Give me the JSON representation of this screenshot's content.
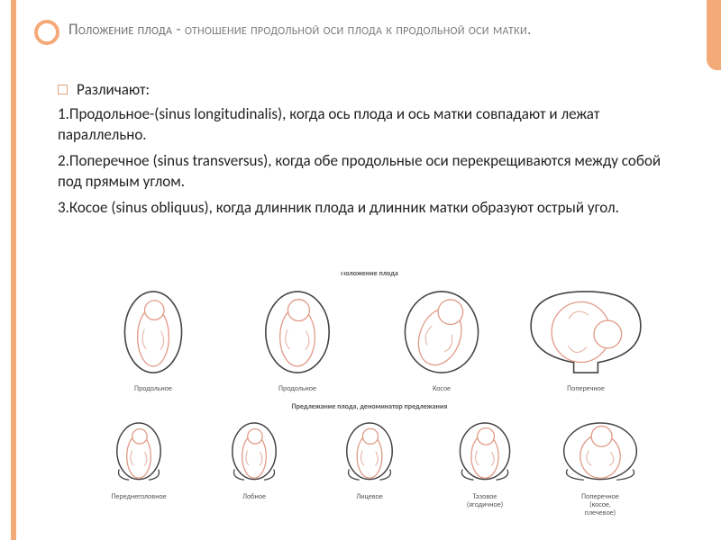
{
  "title": {
    "lead": "Положение плода",
    "rest": " - отношение продольной оси плода к продольной оси матки."
  },
  "intro_label": "Различают:",
  "items": [
    "1.Продольное-(sinus longitudinalis), когда ось плода и ось матки совпадают и лежат параллельно.",
    "2.Поперечное (sinus transversus), когда обе продольные оси перекрещиваются между собой под прямым углом.",
    "3.Косое (sinus obliquus), когда длинник плода и длинник матки образуют острый угол."
  ],
  "diagrams": {
    "top_title": "Положение плода",
    "bottom_title": "Предлежание плода, деноминатор предлежания",
    "top": [
      {
        "label": "Продольное",
        "shape": "oval",
        "ratio": 0.7,
        "angle": 0
      },
      {
        "label": "Продольное",
        "shape": "oval",
        "ratio": 0.78,
        "angle": 0
      },
      {
        "label": "Косое",
        "shape": "oval",
        "ratio": 0.9,
        "angle": 20
      },
      {
        "label": "Поперечное",
        "shape": "bowl",
        "ratio": 1.35,
        "angle": 90
      }
    ],
    "bottom": [
      {
        "label": "Переднеголовное",
        "shape": "pelvis",
        "ratio": 0.72
      },
      {
        "label": "Лобное",
        "shape": "pelvis",
        "ratio": 0.72
      },
      {
        "label": "Лицевое",
        "shape": "pelvis",
        "ratio": 0.75
      },
      {
        "label": "Тазовое (ягодичное)",
        "shape": "pelvis",
        "ratio": 0.82
      },
      {
        "label": "Поперечное (косое, плечевое)",
        "shape": "pelvis",
        "ratio": 1.2
      }
    ],
    "palette": {
      "outline": "#444444",
      "fetus_outline": "#e09a86",
      "fetus_fill": "#ffffff",
      "bg": "#ffffff",
      "label": "#555555"
    }
  },
  "colors": {
    "accent": "#f4a978",
    "title_text": "#7a7a7a",
    "body_text": "#222222"
  }
}
